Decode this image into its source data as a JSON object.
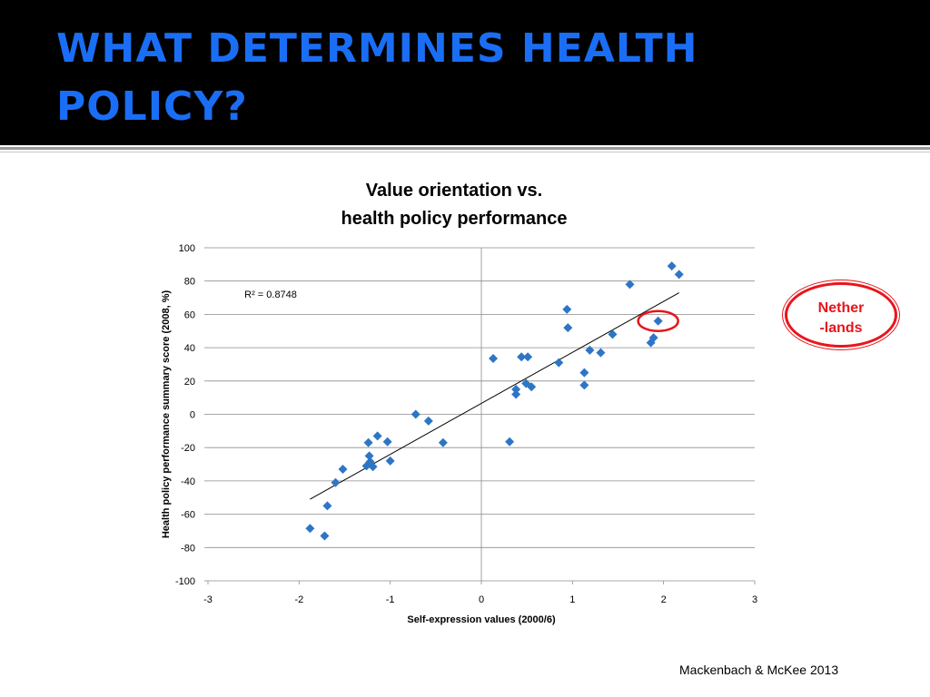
{
  "slide": {
    "title_line1": "WHAT DETERMINES HEALTH",
    "title_line2": "POLICY?",
    "citation": "Mackenbach & McKee 2013",
    "title_color": "#1a6ef5"
  },
  "callout": {
    "line1": "Nether",
    "line2": "-lands",
    "color": "#e8151b"
  },
  "chart_data": {
    "type": "scatter",
    "title_line1": "Value orientation vs.",
    "title_line2": "health policy performance",
    "xlabel": "Self-expression values (2000/6)",
    "ylabel": "Health policy performance summary score (2008, %)",
    "xlim": [
      -3,
      3
    ],
    "ylim": [
      -100,
      100
    ],
    "xticks": [
      "-3",
      "-2",
      "-1",
      "0",
      "1",
      "2",
      "3"
    ],
    "yticks": [
      "100",
      "80",
      "60",
      "40",
      "20",
      "0",
      "-20",
      "-40",
      "-60",
      "-80",
      "-100"
    ],
    "grid": "horizontal",
    "marker_color": "#2e75c6",
    "annotation": "R² = 0.8748",
    "trendline": {
      "x": [
        -1.88,
        2.17
      ],
      "y": [
        -51,
        73
      ]
    },
    "points": [
      {
        "x": -1.88,
        "y": -68.5
      },
      {
        "x": -1.72,
        "y": -73
      },
      {
        "x": -1.69,
        "y": -55
      },
      {
        "x": -1.6,
        "y": -41
      },
      {
        "x": -1.52,
        "y": -33
      },
      {
        "x": -1.24,
        "y": -17
      },
      {
        "x": -1.26,
        "y": -31
      },
      {
        "x": -1.23,
        "y": -25
      },
      {
        "x": -1.22,
        "y": -28.5
      },
      {
        "x": -1.19,
        "y": -31.5
      },
      {
        "x": -1.14,
        "y": -13
      },
      {
        "x": -1.03,
        "y": -16.5
      },
      {
        "x": -1.0,
        "y": -28
      },
      {
        "x": -0.72,
        "y": 0
      },
      {
        "x": -0.58,
        "y": -4
      },
      {
        "x": -0.42,
        "y": -17
      },
      {
        "x": 0.13,
        "y": 33.5
      },
      {
        "x": 0.31,
        "y": -16.5
      },
      {
        "x": 0.38,
        "y": 15
      },
      {
        "x": 0.38,
        "y": 12
      },
      {
        "x": 0.44,
        "y": 34.5
      },
      {
        "x": 0.49,
        "y": 18.5
      },
      {
        "x": 0.51,
        "y": 34.5
      },
      {
        "x": 0.55,
        "y": 16.5
      },
      {
        "x": 0.85,
        "y": 31
      },
      {
        "x": 0.94,
        "y": 63
      },
      {
        "x": 0.95,
        "y": 52
      },
      {
        "x": 1.13,
        "y": 25
      },
      {
        "x": 1.13,
        "y": 17.5
      },
      {
        "x": 1.19,
        "y": 38.5
      },
      {
        "x": 1.31,
        "y": 37
      },
      {
        "x": 1.44,
        "y": 48
      },
      {
        "x": 1.63,
        "y": 78
      },
      {
        "x": 1.86,
        "y": 43
      },
      {
        "x": 1.89,
        "y": 46
      },
      {
        "x": 1.94,
        "y": 56
      },
      {
        "x": 2.09,
        "y": 89
      },
      {
        "x": 2.17,
        "y": 84
      }
    ],
    "highlight": {
      "x": 1.94,
      "y": 56
    }
  }
}
